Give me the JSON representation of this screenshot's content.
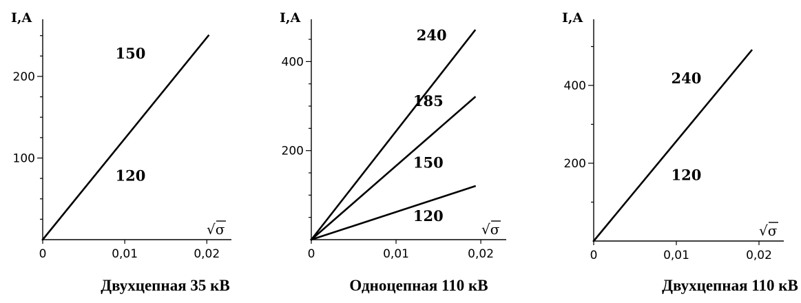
{
  "chart_data": [
    {
      "type": "line",
      "caption": "Двухцепная 35 кВ",
      "ylabel": "I,A",
      "xlabel": "√σ",
      "xlim": [
        0,
        0.023
      ],
      "ylim": [
        0,
        270
      ],
      "xticks": [
        {
          "value": 0,
          "label": "0"
        },
        {
          "value": 0.01,
          "label": "0,01"
        },
        {
          "value": 0.02,
          "label": "0,02"
        }
      ],
      "yticks": [
        {
          "value": 100,
          "label": "100"
        },
        {
          "value": 200,
          "label": "200"
        }
      ],
      "minor_yticks": [
        25,
        50,
        75,
        125,
        150,
        175,
        225,
        250
      ],
      "series": [
        {
          "x": [
            0,
            0.0202
          ],
          "y": [
            0,
            250
          ]
        }
      ],
      "annotations": [
        {
          "text": "150",
          "x": 0.0107,
          "y": 222
        },
        {
          "text": "120",
          "x": 0.0107,
          "y": 72
        }
      ]
    },
    {
      "type": "line",
      "caption": "Одноцепная 110 кВ",
      "ylabel": "I,A",
      "xlabel": "√σ",
      "xlim": [
        0,
        0.023
      ],
      "ylim": [
        0,
        495
      ],
      "xticks": [
        {
          "value": 0,
          "label": "0"
        },
        {
          "value": 0.01,
          "label": "0,01"
        },
        {
          "value": 0.02,
          "label": "0,02"
        }
      ],
      "yticks": [
        {
          "value": 200,
          "label": "200"
        },
        {
          "value": 400,
          "label": "400"
        }
      ],
      "minor_yticks": [
        50,
        100,
        150,
        250,
        300,
        350,
        450
      ],
      "series": [
        {
          "x": [
            0,
            0.0193
          ],
          "y": [
            0,
            470
          ]
        },
        {
          "x": [
            0,
            0.0193
          ],
          "y": [
            0,
            320
          ]
        },
        {
          "x": [
            0,
            0.0193
          ],
          "y": [
            0,
            120
          ]
        }
      ],
      "annotations": [
        {
          "text": "240",
          "x": 0.0142,
          "y": 448
        },
        {
          "text": "185",
          "x": 0.0138,
          "y": 300
        },
        {
          "text": "150",
          "x": 0.0138,
          "y": 162
        },
        {
          "text": "120",
          "x": 0.0138,
          "y": 42
        }
      ]
    },
    {
      "type": "line",
      "caption": "Двухцепная 110 кВ",
      "ylabel": "I,A",
      "xlabel": "√σ",
      "xlim": [
        0,
        0.023
      ],
      "ylim": [
        0,
        570
      ],
      "xticks": [
        {
          "value": 0,
          "label": "0"
        },
        {
          "value": 0.01,
          "label": "0,01"
        },
        {
          "value": 0.02,
          "label": "0,02"
        }
      ],
      "yticks": [
        {
          "value": 200,
          "label": "200"
        },
        {
          "value": 400,
          "label": "400"
        }
      ],
      "minor_yticks": [
        100,
        300,
        500
      ],
      "series": [
        {
          "x": [
            0,
            0.0191
          ],
          "y": [
            0,
            490
          ]
        }
      ],
      "annotations": [
        {
          "text": "240",
          "x": 0.0112,
          "y": 405
        },
        {
          "text": "120",
          "x": 0.0112,
          "y": 157
        }
      ]
    }
  ]
}
